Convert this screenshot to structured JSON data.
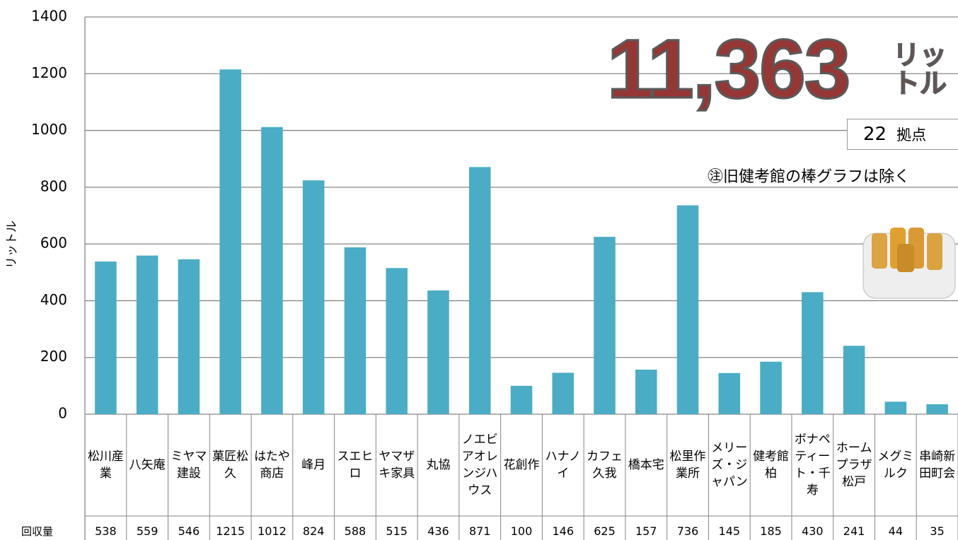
{
  "chart_data": {
    "type": "bar",
    "y_label": "リットル",
    "row_label": "回収量",
    "total": "11,363",
    "total_unit": "リットル",
    "sites": "22",
    "sites_unit": "拠点",
    "note": "㊟旧健考館の棒グラフは除く",
    "categories": [
      "松川産業",
      "八矢庵",
      "ミヤマ建設",
      "菓匠松久",
      "はたや商店",
      "峰月",
      "スエヒロ",
      "ヤマザキ家具",
      "丸協",
      "ノエビアオレンジハウス",
      "花創作",
      "ハナノイ",
      "カフェ久我",
      "橋本宅",
      "松里作業所",
      "メリーズ・ジャパン",
      "健考館柏",
      "ボナペティート・千寿",
      "ホームプラザ松戸",
      "メグミルク",
      "串崎新田町会"
    ],
    "values": [
      538,
      559,
      546,
      1215,
      1012,
      824,
      588,
      515,
      436,
      871,
      100,
      146,
      625,
      157,
      736,
      145,
      185,
      430,
      241,
      44,
      35
    ],
    "color": "#4bacc6",
    "ylim": [
      0,
      1400
    ],
    "yticks": [
      0,
      200,
      400,
      600,
      800,
      1000,
      1200,
      1400
    ],
    "grid": true
  }
}
